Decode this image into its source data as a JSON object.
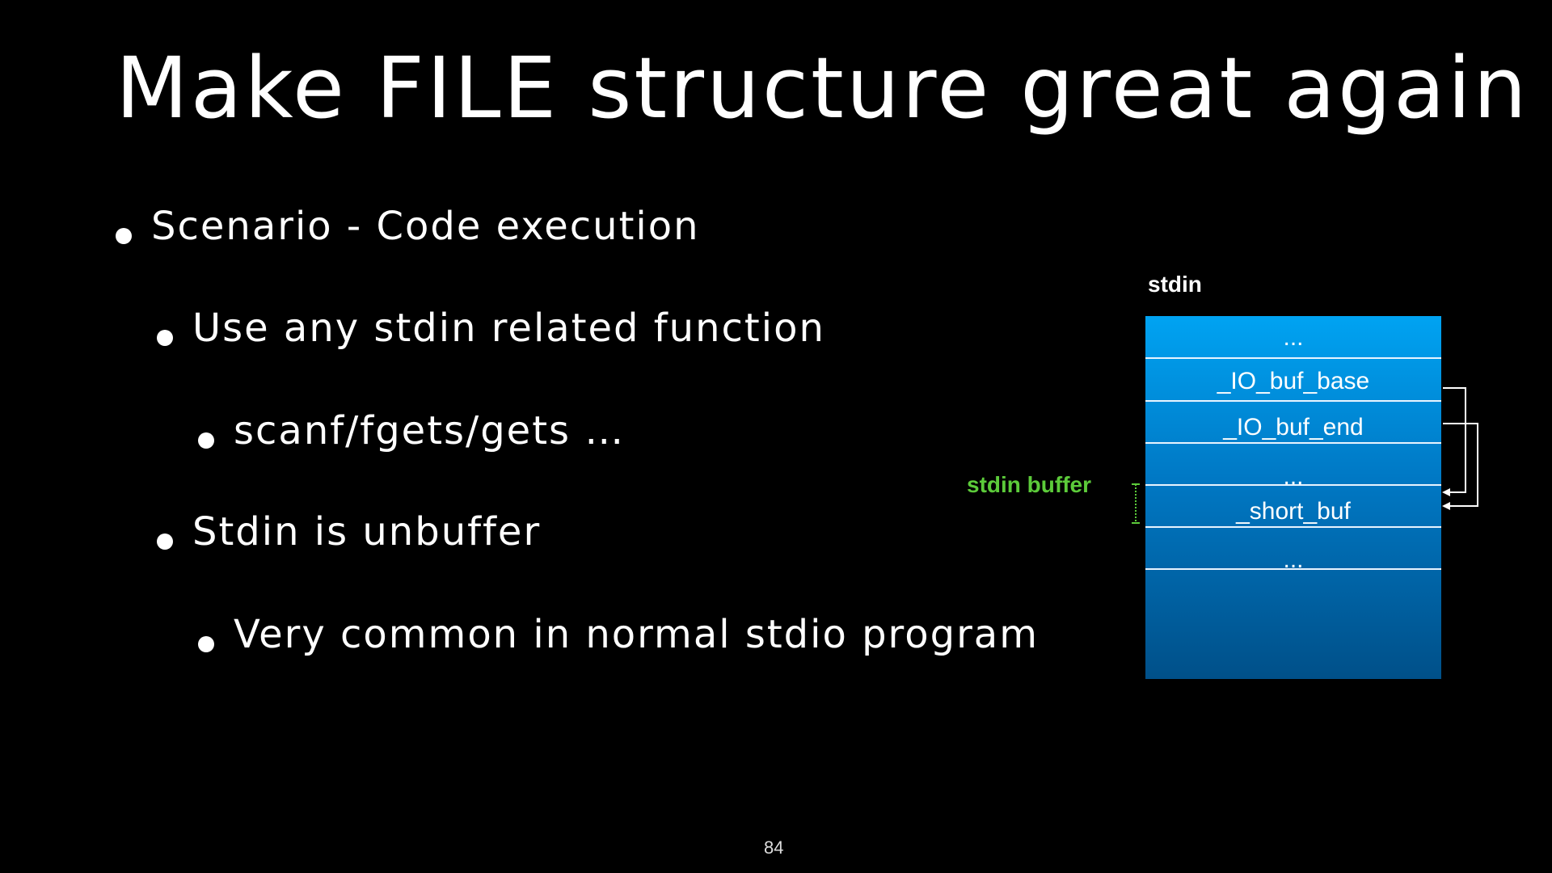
{
  "slide": {
    "title": "Make FILE structure great again",
    "bullets": [
      {
        "level": 1,
        "text": "Scenario - Code execution"
      },
      {
        "level": 2,
        "text": "Use any stdin related function"
      },
      {
        "level": 3,
        "text": "scanf/fgets/gets …"
      },
      {
        "level": 2,
        "text": "Stdin is unbuffer"
      },
      {
        "level": 3,
        "text": "Very common in normal stdio program"
      }
    ],
    "page_number": "84"
  },
  "diagram": {
    "struct_label": "stdin",
    "fields": [
      "...",
      "_IO_buf_base",
      "_IO_buf_end",
      "...",
      "_short_buf",
      "..."
    ],
    "buffer_label": "stdin buffer",
    "colors": {
      "box_top": "#00a3f2",
      "box_bottom": "#005089",
      "buffer_label": "#5ccb3a"
    }
  }
}
